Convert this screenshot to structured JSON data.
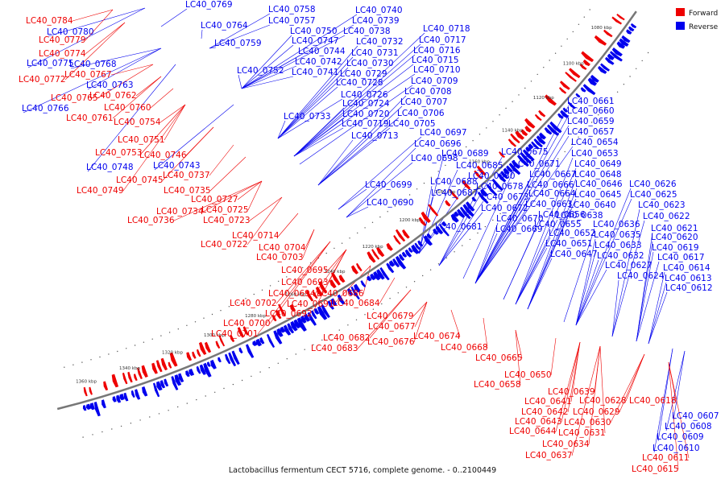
{
  "caption": "Lactobacillus fermentum CECT 5716, complete genome. - 0..2100449",
  "legend": {
    "items": [
      {
        "label": "Forward",
        "color": "#ee0000"
      },
      {
        "label": "Reverse",
        "color": "#0000ee"
      }
    ]
  },
  "colors": {
    "forward": "#ee0000",
    "reverse": "#0000ee",
    "backbone": "#777777"
  },
  "ticks": [
    "1360 kbp",
    "1340 kbp",
    "1320 kbp",
    "1300 kbp",
    "1280 kbp",
    "1260 kbp",
    "1240 kbp",
    "1220 kbp",
    "1200 kbp",
    "1180 kbp",
    "1160 kbp",
    "1140 kbp",
    "1120 kbp",
    "1100 kbp",
    "1080 kbp"
  ],
  "reverse_labels": [
    "LC40_0769",
    "LC40_0758",
    "LC40_0740",
    "LC40_0764",
    "LC40_0757",
    "LC40_0739",
    "LC40_0750",
    "LC40_0738",
    "LC40_0718",
    "LC40_0759",
    "LC40_0747",
    "LC40_0732",
    "LC40_0717",
    "LC40_0744",
    "LC40_0731",
    "LC40_0716",
    "LC40_0742",
    "LC40_0730",
    "LC40_0715",
    "LC40_0752",
    "LC40_0741",
    "LC40_0729",
    "LC40_0710",
    "LC40_0728",
    "LC40_0709",
    "LC40_0726",
    "LC40_0708",
    "LC40_0724",
    "LC40_0707",
    "LC40_0733",
    "LC40_0720",
    "LC40_0706",
    "LC40_0719",
    "LC40_0705",
    "LC40_0713",
    "LC40_0697",
    "LC40_0696",
    "LC40_0698",
    "LC40_0689",
    "LC40_0675",
    "LC40_0685",
    "LC40_0671",
    "LC40_0680",
    "LC40_0667",
    "LC40_0699",
    "LC40_0688",
    "LC40_0678",
    "LC40_0666",
    "LC40_0687",
    "LC40_0673",
    "LC40_0664",
    "LC40_0690",
    "LC40_0672",
    "LC40_0663",
    "LC40_0670",
    "LC40_0656",
    "LC40_0681",
    "LC40_0669",
    "LC40_0652",
    "LC40_0651",
    "LC40_0647",
    "LC40_0661",
    "LC40_0660",
    "LC40_0659",
    "LC40_0657",
    "LC40_0654",
    "LC40_0653",
    "LC40_0649",
    "LC40_0648",
    "LC40_0646",
    "LC40_0645",
    "LC40_0640",
    "LC40_0638",
    "LC40_0636",
    "LC40_0635",
    "LC40_0633",
    "LC40_0632",
    "LC40_0627",
    "LC40_0624",
    "LC40_0655",
    "LC40_0626",
    "LC40_0625",
    "LC40_0623",
    "LC40_0622",
    "LC40_0621",
    "LC40_0620",
    "LC40_0619",
    "LC40_0617",
    "LC40_0614",
    "LC40_0613",
    "LC40_0612",
    "LC40_0780",
    "LC40_0775",
    "LC40_0768",
    "LC40_0763",
    "LC40_0766",
    "LC40_0748",
    "LC40_0743",
    "LC40_0607",
    "LC40_0608",
    "LC40_0609",
    "LC40_0610"
  ],
  "forward_labels": [
    "LC40_0784",
    "LC40_0779",
    "LC40_0774",
    "LC40_0772",
    "LC40_0767",
    "LC40_0765",
    "LC40_0762",
    "LC40_0760",
    "LC40_0761",
    "LC40_0754",
    "LC40_0751",
    "LC40_0753",
    "LC40_0746",
    "LC40_0745",
    "LC40_0737",
    "LC40_0749",
    "LC40_0735",
    "LC40_0727",
    "LC40_0734",
    "LC40_0725",
    "LC40_0736",
    "LC40_0723",
    "LC40_0714",
    "LC40_0722",
    "LC40_0704",
    "LC40_0703",
    "LC40_0695",
    "LC40_0693",
    "LC40_0694",
    "LC40_0686",
    "LC40_0702",
    "LC40_0691",
    "LC40_0684",
    "LC40_0692",
    "LC40_0700",
    "LC40_0701",
    "LC40_0679",
    "LC40_0677",
    "LC40_0682",
    "LC40_0676",
    "LC40_0683",
    "LC40_0674",
    "LC40_0668",
    "LC40_0665",
    "LC40_0650",
    "LC40_0658",
    "LC40_0639",
    "LC40_0641",
    "LC40_0628",
    "LC40_0642",
    "LC40_0629",
    "LC40_0643",
    "LC40_0630",
    "LC40_0644",
    "LC40_0631",
    "LC40_0634",
    "LC40_0637",
    "LC40_0618",
    "LC40_0611",
    "LC40_0615"
  ]
}
